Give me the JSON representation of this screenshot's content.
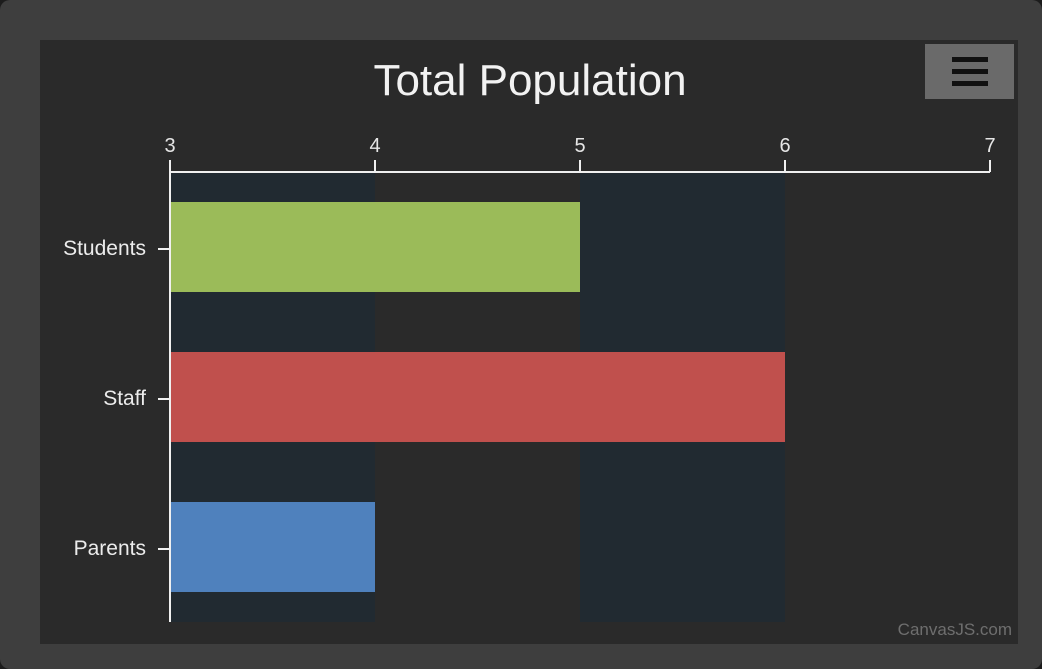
{
  "chart_data": {
    "type": "bar",
    "orientation": "horizontal",
    "title": "Total Population",
    "categories": [
      "Students",
      "Staff",
      "Parents"
    ],
    "values": [
      5,
      6,
      4
    ],
    "colors": [
      "#9bbb59",
      "#c0504d",
      "#4f81bd"
    ],
    "xlim": [
      3,
      7
    ],
    "ticks": [
      "3",
      "4",
      "5",
      "6",
      "7"
    ],
    "tick_values": [
      3,
      4,
      5,
      6,
      7
    ],
    "interlaced_bands": true,
    "theme": {
      "page_bg": "#3e3e3e",
      "plot_bg": "#2a2a2a",
      "band_color": "#212a31",
      "axis_color": "#f0f0f0"
    }
  },
  "menu": {
    "icon": "hamburger-icon"
  },
  "credit": "CanvasJS.com"
}
